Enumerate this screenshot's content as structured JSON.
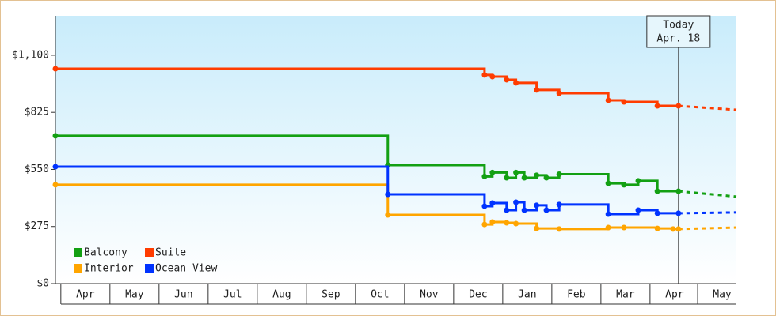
{
  "chart_data": {
    "type": "step-line",
    "xlim": [
      -0.11,
      13.76
    ],
    "xticks": [
      {
        "value": 0.5,
        "label": "Apr"
      },
      {
        "value": 1.5,
        "label": "May"
      },
      {
        "value": 2.5,
        "label": "Jun"
      },
      {
        "value": 3.5,
        "label": "Jul"
      },
      {
        "value": 4.5,
        "label": "Aug"
      },
      {
        "value": 5.5,
        "label": "Sep"
      },
      {
        "value": 6.5,
        "label": "Oct"
      },
      {
        "value": 7.5,
        "label": "Nov"
      },
      {
        "value": 8.5,
        "label": "Dec"
      },
      {
        "value": 9.5,
        "label": "Jan"
      },
      {
        "value": 10.5,
        "label": "Feb"
      },
      {
        "value": 11.5,
        "label": "Mar"
      },
      {
        "value": 12.5,
        "label": "Apr"
      },
      {
        "value": 13.47,
        "label": "May"
      }
    ],
    "ylim": [
      0,
      1290
    ],
    "yticks": [
      {
        "value": 0,
        "label": "$0"
      },
      {
        "value": 275,
        "label": "$275"
      },
      {
        "value": 550,
        "label": "$550"
      },
      {
        "value": 825,
        "label": "$825"
      },
      {
        "value": 1100,
        "label": "$1,100"
      }
    ],
    "annotation": {
      "x": 12.58,
      "lines": [
        "Today",
        "Apr. 18"
      ]
    },
    "series": [
      {
        "name": "Balcony",
        "color": "#13a013",
        "x": [
          -0.11,
          6.66,
          8.63,
          8.79,
          9.08,
          9.27,
          9.44,
          9.69,
          9.89,
          10.15,
          11.15,
          11.47,
          11.76,
          12.15,
          12.58
        ],
        "values": [
          712,
          571,
          516,
          535,
          510,
          535,
          510,
          522,
          510,
          527,
          483,
          476,
          495,
          445,
          445
        ],
        "forecast_x": [
          13.76
        ],
        "forecast_values": [
          419
        ]
      },
      {
        "name": "Suite",
        "color": "#ff3c00",
        "x": [
          -0.11,
          8.63,
          8.79,
          9.08,
          9.27,
          9.69,
          10.15,
          11.15,
          11.47,
          12.15,
          12.58
        ],
        "values": [
          1035,
          1005,
          997,
          982,
          967,
          933,
          917,
          883,
          875,
          856,
          856
        ],
        "forecast_x": [
          13.76
        ],
        "forecast_values": [
          837
        ]
      },
      {
        "name": "Interior",
        "color": "#ffa500",
        "x": [
          -0.11,
          6.66,
          8.63,
          8.79,
          9.08,
          9.27,
          9.69,
          10.15,
          11.15,
          11.47,
          12.15,
          12.47,
          12.58
        ],
        "values": [
          476,
          331,
          285,
          297,
          293,
          289,
          266,
          263,
          270,
          270,
          266,
          263,
          263
        ],
        "forecast_x": [
          13.76
        ],
        "forecast_values": [
          270
        ]
      },
      {
        "name": "Ocean View",
        "color": "#0033ff",
        "x": [
          -0.11,
          6.66,
          8.63,
          8.79,
          9.08,
          9.27,
          9.44,
          9.69,
          9.89,
          10.15,
          11.15,
          11.76,
          12.15,
          12.58
        ],
        "values": [
          563,
          430,
          373,
          388,
          354,
          392,
          354,
          377,
          354,
          381,
          335,
          354,
          339,
          339
        ],
        "forecast_x": [
          13.76
        ],
        "forecast_values": [
          343
        ]
      }
    ]
  }
}
